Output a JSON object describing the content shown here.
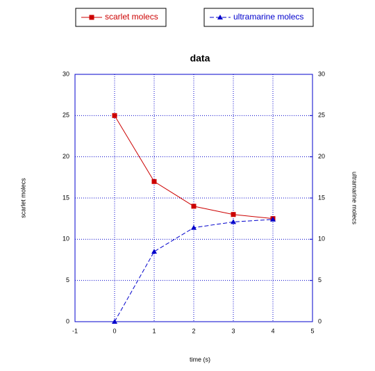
{
  "chart_data": {
    "type": "line",
    "title": "data",
    "x_label": "time (s)",
    "y_label": "scarlet molecs",
    "y2_label": "ultramarine molecs",
    "x": [
      0,
      1,
      2,
      3,
      4
    ],
    "series": [
      {
        "name": "scarlet molecs",
        "color": "#cc0000",
        "marker": "square",
        "dash": false,
        "values": [
          25,
          17,
          14,
          13,
          12.5
        ]
      },
      {
        "name": "ultramarine molecs",
        "color": "#0000cc",
        "marker": "triangle",
        "dash": true,
        "axis": "y2",
        "values": [
          0,
          8.5,
          11.4,
          12.1,
          12.4
        ]
      }
    ],
    "xlim": [
      -1,
      5
    ],
    "xticks": [
      -1,
      0,
      1,
      2,
      3,
      4,
      5
    ],
    "ylim": [
      0,
      30
    ],
    "yticks": [
      0,
      5,
      10,
      15,
      20,
      25,
      30
    ],
    "y2lim": [
      0,
      30
    ],
    "y2ticks": [
      0,
      5,
      10,
      15,
      20,
      25,
      30
    ],
    "grid": true,
    "legend": "top"
  }
}
